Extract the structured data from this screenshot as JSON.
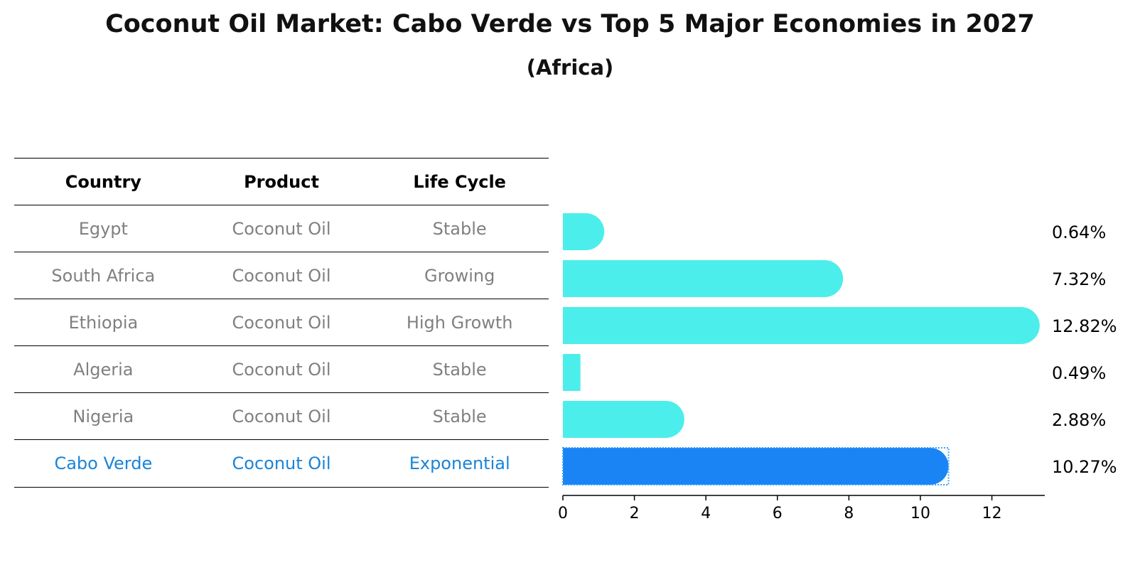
{
  "title": "Coconut Oil Market: Cabo Verde vs Top 5 Major Economies in 2027",
  "subtitle": "(Africa)",
  "table": {
    "headers": [
      "Country",
      "Product",
      "Life Cycle"
    ],
    "rows": [
      {
        "country": "Egypt",
        "product": "Coconut Oil",
        "life_cycle": "Stable"
      },
      {
        "country": "South Africa",
        "product": "Coconut Oil",
        "life_cycle": "Growing"
      },
      {
        "country": "Ethiopia",
        "product": "Coconut Oil",
        "life_cycle": "High Growth"
      },
      {
        "country": "Algeria",
        "product": "Coconut Oil",
        "life_cycle": "Stable"
      },
      {
        "country": "Nigeria",
        "product": "Coconut Oil",
        "life_cycle": "Stable"
      },
      {
        "country": "Cabo Verde",
        "product": "Coconut Oil",
        "life_cycle": "Exponential"
      }
    ],
    "highlight_color": "#1a84d8",
    "text_color": "#808080"
  },
  "chart_data": {
    "type": "bar",
    "orientation": "horizontal",
    "categories": [
      "Egypt",
      "South Africa",
      "Ethiopia",
      "Algeria",
      "Nigeria",
      "Cabo Verde"
    ],
    "values": [
      0.64,
      7.32,
      12.82,
      0.49,
      2.88,
      10.27
    ],
    "value_labels": [
      "0.64%",
      "7.32%",
      "12.82%",
      "0.49%",
      "2.88%",
      "10.27%"
    ],
    "xlim": [
      0,
      13.5
    ],
    "xticks": [
      0,
      2,
      4,
      6,
      8,
      10,
      12
    ],
    "colors": [
      "#4beeea",
      "#4beeea",
      "#4beeea",
      "#4beeea",
      "#4beeea",
      "#1a84f4"
    ],
    "highlight_index": 5,
    "grid": false
  }
}
